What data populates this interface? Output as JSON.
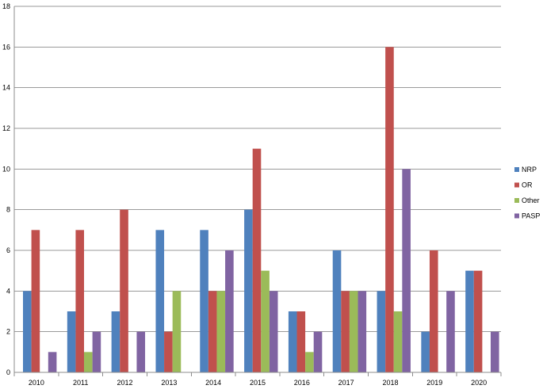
{
  "chart_data": {
    "type": "bar",
    "title": "",
    "xlabel": "",
    "ylabel": "",
    "categories": [
      "2010",
      "2011",
      "2012",
      "2013",
      "2014",
      "2015",
      "2016",
      "2017",
      "2018",
      "2019",
      "2020"
    ],
    "ylim": [
      0,
      18
    ],
    "yticks": [
      0,
      2,
      4,
      6,
      8,
      10,
      12,
      14,
      16,
      18
    ],
    "grid": true,
    "legend_position": "right",
    "series": [
      {
        "name": "NRP",
        "color": "#4F81BD",
        "values": [
          4,
          3,
          3,
          7,
          7,
          8,
          3,
          6,
          4,
          2,
          5
        ]
      },
      {
        "name": "OR",
        "color": "#C0504D",
        "values": [
          7,
          7,
          8,
          2,
          4,
          11,
          3,
          4,
          16,
          6,
          5
        ]
      },
      {
        "name": "Other",
        "color": "#9BBB59",
        "values": [
          0,
          1,
          0,
          4,
          4,
          5,
          1,
          4,
          3,
          0,
          0
        ]
      },
      {
        "name": "PASP",
        "color": "#8064A2",
        "values": [
          1,
          2,
          2,
          0,
          6,
          4,
          2,
          4,
          10,
          4,
          2
        ]
      }
    ]
  }
}
